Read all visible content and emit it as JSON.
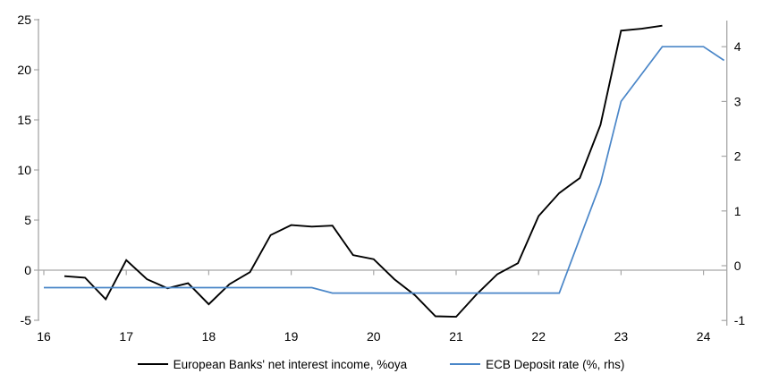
{
  "chart_data": {
    "type": "line",
    "x_axis": {
      "ticks": [
        16,
        17,
        18,
        19,
        20,
        21,
        22,
        23,
        24
      ],
      "min": 16,
      "max": 24.35,
      "tick_label_position": "bottom",
      "tick_marks_on": "zero-line"
    },
    "left_axis": {
      "side": "left",
      "ticks": [
        -5,
        0,
        5,
        10,
        15,
        20,
        25
      ],
      "min": -5,
      "max": 25
    },
    "right_axis": {
      "side": "right",
      "ticks": [
        -1,
        0,
        1,
        2,
        3,
        4
      ],
      "min": -1,
      "max": 4.5
    },
    "grid": "zero-line-only",
    "legend_position": "bottom",
    "colors": {
      "axis": "#a6a6a6",
      "nii_line": "#000000",
      "ecb_line": "#4a86c8"
    },
    "series": [
      {
        "name": "European Banks' net interest income, %oya",
        "axis": "left",
        "color": "#000000",
        "x": [
          16.25,
          16.5,
          16.75,
          17,
          17.25,
          17.5,
          17.75,
          18,
          18.25,
          18.5,
          18.75,
          19,
          19.25,
          19.5,
          19.75,
          20,
          20.25,
          20.5,
          20.75,
          21,
          21.25,
          21.5,
          21.75,
          22,
          22.25,
          22.5,
          22.75,
          23,
          23.25,
          23.5
        ],
        "values": [
          -0.6,
          -0.75,
          -2.9,
          1.0,
          -0.9,
          -1.8,
          -1.3,
          -3.4,
          -1.4,
          -0.2,
          3.5,
          4.5,
          4.35,
          4.45,
          1.5,
          1.1,
          -0.9,
          -2.5,
          -4.6,
          -4.65,
          -2.4,
          -0.4,
          0.7,
          5.4,
          7.7,
          9.2,
          14.5,
          23.9,
          24.1,
          24.4
        ]
      },
      {
        "name": "ECB Deposit rate (%, rhs)",
        "axis": "right",
        "color": "#4a86c8",
        "x": [
          16,
          16.25,
          16.5,
          16.75,
          17,
          17.25,
          17.5,
          17.75,
          18,
          18.25,
          18.5,
          18.75,
          19,
          19.25,
          19.5,
          19.75,
          20,
          20.25,
          20.5,
          20.75,
          21,
          21.25,
          21.5,
          21.75,
          22,
          22.25,
          22.5,
          22.75,
          23,
          23.25,
          23.5,
          23.75,
          24,
          24.25
        ],
        "values": [
          -0.4,
          -0.4,
          -0.4,
          -0.4,
          -0.4,
          -0.4,
          -0.4,
          -0.4,
          -0.4,
          -0.4,
          -0.4,
          -0.4,
          -0.4,
          -0.4,
          -0.5,
          -0.5,
          -0.5,
          -0.5,
          -0.5,
          -0.5,
          -0.5,
          -0.5,
          -0.5,
          -0.5,
          -0.5,
          -0.5,
          0.5,
          1.5,
          3.0,
          3.5,
          4.0,
          4.0,
          4.0,
          3.75
        ]
      }
    ]
  }
}
